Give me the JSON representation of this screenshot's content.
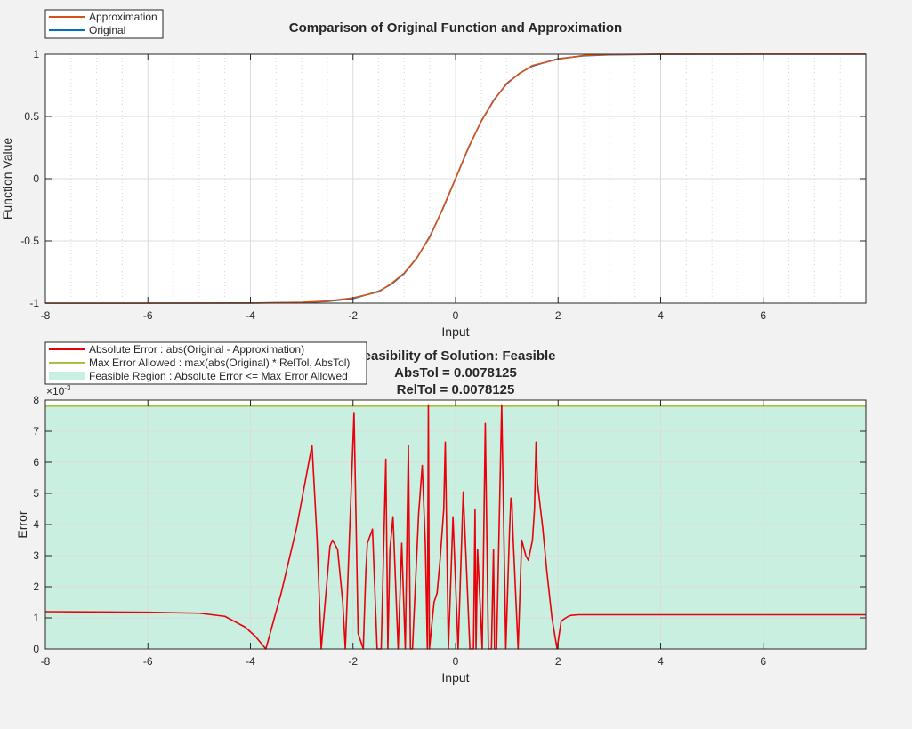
{
  "chart_data": [
    {
      "type": "line",
      "title": "Comparison of Original Function and Approximation",
      "xlabel": "Input",
      "ylabel": "Function Value",
      "xlim": [
        -8,
        8
      ],
      "ylim": [
        -1,
        1
      ],
      "xticks": [
        "-8",
        "-6",
        "-4",
        "-2",
        "0",
        "2",
        "4",
        "6"
      ],
      "yticks": [
        "-1",
        "-0.5",
        "0",
        "0.5",
        "1"
      ],
      "grid": true,
      "minor_grid": true,
      "legend_position": "top-left",
      "legend": [
        "Approximation",
        "Original"
      ],
      "series": [
        {
          "name": "Original",
          "color": "#0072bd",
          "x": [
            -8,
            -6,
            -4,
            -3,
            -2.5,
            -2,
            -1.5,
            -1.25,
            -1,
            -0.75,
            -0.5,
            -0.25,
            0,
            0.25,
            0.5,
            0.75,
            1,
            1.25,
            1.5,
            2,
            2.5,
            3,
            4,
            6,
            8
          ],
          "y": [
            -1,
            -1,
            -0.9993,
            -0.995,
            -0.9866,
            -0.964,
            -0.905,
            -0.848,
            -0.762,
            -0.635,
            -0.462,
            -0.245,
            0,
            0.245,
            0.462,
            0.635,
            0.762,
            0.848,
            0.905,
            0.964,
            0.9866,
            0.995,
            0.9993,
            1,
            1
          ]
        },
        {
          "name": "Approximation",
          "color": "#d95319",
          "x": [
            -8,
            -6,
            -4,
            -3,
            -2.5,
            -2,
            -1.5,
            -1.25,
            -1,
            -0.75,
            -0.5,
            -0.25,
            0,
            0.25,
            0.5,
            0.75,
            1,
            1.25,
            1.5,
            2,
            2.5,
            3,
            4,
            6,
            8
          ],
          "y": [
            -1.001,
            -1.001,
            -0.9995,
            -0.993,
            -0.9835,
            -0.958,
            -0.91,
            -0.842,
            -0.758,
            -0.632,
            -0.468,
            -0.24,
            0.002,
            0.25,
            0.46,
            0.63,
            0.768,
            0.845,
            0.91,
            0.96,
            0.99,
            0.997,
            1.0003,
            1.001,
            1.001
          ]
        }
      ]
    },
    {
      "type": "line",
      "title_lines": [
        "Feasibility of Solution: Feasible",
        "AbsTol = 0.0078125",
        "RelTol = 0.0078125"
      ],
      "xlabel": "Input",
      "ylabel": "Error",
      "xlim": [
        -8,
        8
      ],
      "ylim": [
        0,
        8
      ],
      "xticks": [
        "-8",
        "-6",
        "-4",
        "-2",
        "0",
        "2",
        "4",
        "6"
      ],
      "yticks": [
        "0",
        "1",
        "2",
        "3",
        "4",
        "5",
        "6",
        "7",
        "8"
      ],
      "y_exponent": "×10",
      "y_exponent_power": "-3",
      "grid": true,
      "legend_position": "top-left",
      "legend": [
        "Absolute Error : abs(Original - Approximation)",
        "Max Error Allowed : max(abs(Original) * RelTol, AbsTol)",
        "Feasible Region : Absolute Error <= Max Error Allowed"
      ],
      "max_error_allowed": 7.8125,
      "colors": {
        "error": "#e8000b",
        "max": "#a9c23f",
        "region": "#c9efe0"
      },
      "series": [
        {
          "name": "Absolute Error : abs(Original - Approximation)",
          "x": [
            -8,
            -6,
            -5,
            -4.5,
            -4.1,
            -3.9,
            -3.7,
            -3.4,
            -3.1,
            -2.8,
            -2.7,
            -2.62,
            -2.45,
            -2.4,
            -2.3,
            -2.2,
            -2.15,
            -1.98,
            -1.9,
            -1.8,
            -1.75,
            -1.72,
            -1.62,
            -1.53,
            -1.45,
            -1.36,
            -1.32,
            -1.28,
            -1.22,
            -1.12,
            -1.05,
            -0.98,
            -0.92,
            -0.88,
            -0.84,
            -0.72,
            -0.65,
            -0.59,
            -0.55,
            -0.53,
            -0.51,
            -0.42,
            -0.36,
            -0.3,
            -0.23,
            -0.2,
            -0.18,
            -0.14,
            -0.05,
            0.05,
            0.15,
            0.28,
            0.35,
            0.38,
            0.4,
            0.43,
            0.52,
            0.58,
            0.64,
            0.7,
            0.74,
            0.76,
            0.8,
            0.9,
            0.98,
            1.05,
            1.08,
            1.1,
            1.12,
            1.22,
            1.29,
            1.37,
            1.42,
            1.5,
            1.54,
            1.57,
            1.6,
            1.7,
            1.78,
            1.88,
            1.98,
            2.06,
            2.15,
            2.2,
            2.25,
            2.4,
            2.55,
            2.7,
            2.77,
            2.85,
            3.1,
            3.4,
            3.6,
            3.73,
            3.85,
            4.1,
            4.5,
            5,
            6,
            8
          ],
          "y": [
            1.2,
            1.18,
            1.15,
            1.05,
            0.7,
            0.4,
            0,
            1.8,
            3.9,
            6.55,
            3.5,
            0,
            3.3,
            3.5,
            3.2,
            1.5,
            0,
            7.6,
            0.5,
            0,
            2.5,
            3.4,
            3.85,
            0,
            0,
            6.1,
            0,
            3.2,
            4.25,
            0,
            3.4,
            0,
            6.55,
            0,
            0,
            4.35,
            5.9,
            3.4,
            0,
            7.85,
            0,
            1.5,
            1.8,
            2.9,
            4.5,
            6.65,
            4.5,
            0,
            4.25,
            0,
            5.05,
            0,
            0,
            4.5,
            0,
            3.2,
            0,
            7.25,
            0,
            0,
            3.2,
            0,
            0,
            7.85,
            0,
            3.7,
            4.85,
            4.7,
            3.7,
            0,
            3.5,
            3.0,
            2.85,
            3.5,
            4.5,
            6.65,
            5.3,
            3.9,
            2.5,
            1.0,
            0,
            0.9,
            1.0,
            1.05,
            1.08,
            1.1,
            1.1,
            1.1,
            1.1,
            1.1,
            1.1,
            1.1,
            1.1,
            1.1,
            1.1,
            1.1,
            1.1,
            1.1,
            1.1,
            1.1
          ]
        }
      ]
    }
  ]
}
